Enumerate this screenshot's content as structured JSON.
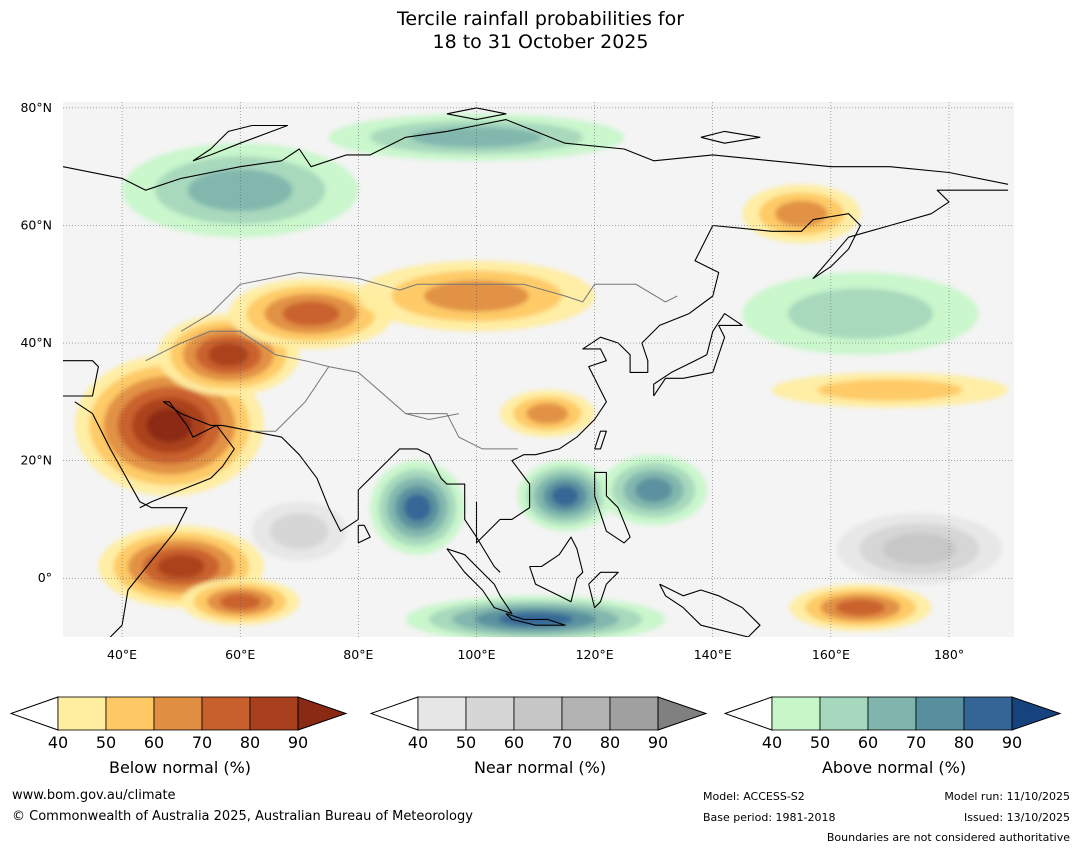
{
  "title": {
    "line1": "Tercile rainfall probabilities for",
    "line2": "18 to 31 October 2025"
  },
  "map": {
    "lat_ticks": [
      {
        "label": "80°N",
        "lat": 80
      },
      {
        "label": "60°N",
        "lat": 60
      },
      {
        "label": "40°N",
        "lat": 40
      },
      {
        "label": "20°N",
        "lat": 20
      },
      {
        "label": "0°",
        "lat": 0
      }
    ],
    "lon_ticks": [
      {
        "label": "40°E",
        "lon": 40
      },
      {
        "label": "60°E",
        "lon": 60
      },
      {
        "label": "80°E",
        "lon": 80
      },
      {
        "label": "100°E",
        "lon": 100
      },
      {
        "label": "120°E",
        "lon": 120
      },
      {
        "label": "140°E",
        "lon": 140
      },
      {
        "label": "160°E",
        "lon": 160
      },
      {
        "label": "180°",
        "lon": 180
      }
    ],
    "extent": {
      "lon_min": 30,
      "lon_max": 191,
      "lat_min": -10,
      "lat_max": 81
    },
    "regions": [
      {
        "name": "arabia-north-africa",
        "category": "below",
        "prob": 90,
        "lon": 48,
        "lat": 26,
        "rx": 16,
        "ry": 12
      },
      {
        "name": "iran-central-asia",
        "category": "below",
        "prob": 85,
        "lon": 58,
        "lat": 38,
        "rx": 12,
        "ry": 7
      },
      {
        "name": "kazakhstan",
        "category": "below",
        "prob": 70,
        "lon": 72,
        "lat": 45,
        "rx": 14,
        "ry": 6
      },
      {
        "name": "mongolia-north-china",
        "category": "below",
        "prob": 60,
        "lon": 100,
        "lat": 48,
        "rx": 20,
        "ry": 6
      },
      {
        "name": "east-siberia",
        "category": "below",
        "prob": 60,
        "lon": 155,
        "lat": 62,
        "rx": 10,
        "ry": 5
      },
      {
        "name": "east-africa",
        "category": "below",
        "prob": 80,
        "lon": 50,
        "lat": 2,
        "rx": 14,
        "ry": 7
      },
      {
        "name": "indian-ocean-south",
        "category": "below",
        "prob": 75,
        "lon": 60,
        "lat": -4,
        "rx": 10,
        "ry": 4
      },
      {
        "name": "west-pacific-south",
        "category": "below",
        "prob": 70,
        "lon": 165,
        "lat": -5,
        "rx": 12,
        "ry": 4
      },
      {
        "name": "north-pacific-band",
        "category": "below",
        "prob": 50,
        "lon": 170,
        "lat": 32,
        "rx": 20,
        "ry": 3
      },
      {
        "name": "south-china",
        "category": "below",
        "prob": 60,
        "lon": 112,
        "lat": 28,
        "rx": 8,
        "ry": 4
      },
      {
        "name": "bay-of-bengal",
        "category": "above",
        "prob": 80,
        "lon": 90,
        "lat": 12,
        "rx": 8,
        "ry": 8
      },
      {
        "name": "south-china-sea",
        "category": "above",
        "prob": 80,
        "lon": 115,
        "lat": 14,
        "rx": 8,
        "ry": 6
      },
      {
        "name": "philippine-sea",
        "category": "above",
        "prob": 75,
        "lon": 130,
        "lat": 15,
        "rx": 9,
        "ry": 6
      },
      {
        "name": "maritime-continent-south",
        "category": "above",
        "prob": 85,
        "lon": 110,
        "lat": -7,
        "rx": 22,
        "ry": 4
      },
      {
        "name": "west-siberia",
        "category": "above",
        "prob": 60,
        "lon": 60,
        "lat": 66,
        "rx": 20,
        "ry": 8
      },
      {
        "name": "arctic-coast",
        "category": "above",
        "prob": 65,
        "lon": 100,
        "lat": 75,
        "rx": 25,
        "ry": 4
      },
      {
        "name": "pacific-north",
        "category": "above",
        "prob": 50,
        "lon": 165,
        "lat": 45,
        "rx": 20,
        "ry": 7
      },
      {
        "name": "central-pacific-gray",
        "category": "near",
        "prob": 60,
        "lon": 175,
        "lat": 5,
        "rx": 14,
        "ry": 6
      },
      {
        "name": "arabian-sea-gray",
        "category": "near",
        "prob": 50,
        "lon": 70,
        "lat": 8,
        "rx": 8,
        "ry": 5
      }
    ]
  },
  "legends": [
    {
      "title": "Below normal (%)",
      "ticks": [
        "40",
        "50",
        "60",
        "70",
        "80",
        "90"
      ],
      "colors": [
        "#ffeda0",
        "#fec965",
        "#e08e42",
        "#c8602e",
        "#a8401e",
        "#8a2a14"
      ]
    },
    {
      "title": "Near normal (%)",
      "ticks": [
        "40",
        "50",
        "60",
        "70",
        "80",
        "90"
      ],
      "colors": [
        "#e6e6e6",
        "#d6d6d6",
        "#c6c6c6",
        "#b3b3b3",
        "#a0a0a0",
        "#808080"
      ]
    },
    {
      "title": "Above normal (%)",
      "ticks": [
        "40",
        "50",
        "60",
        "70",
        "80",
        "90"
      ],
      "colors": [
        "#c7f7c9",
        "#a6d8bd",
        "#7fb5ad",
        "#588f9e",
        "#356596",
        "#16437e"
      ]
    }
  ],
  "footer": {
    "url": "www.bom.gov.au/climate",
    "copyright": "© Commonwealth of Australia 2025, Australian Bureau of Meteorology",
    "model": "Model: ACCESS-S2",
    "base_period": "Base period: 1981-2018",
    "model_run": "Model run: 11/10/2025",
    "issued": "Issued: 13/10/2025",
    "disclaimer": "Boundaries are not considered authoritative"
  }
}
